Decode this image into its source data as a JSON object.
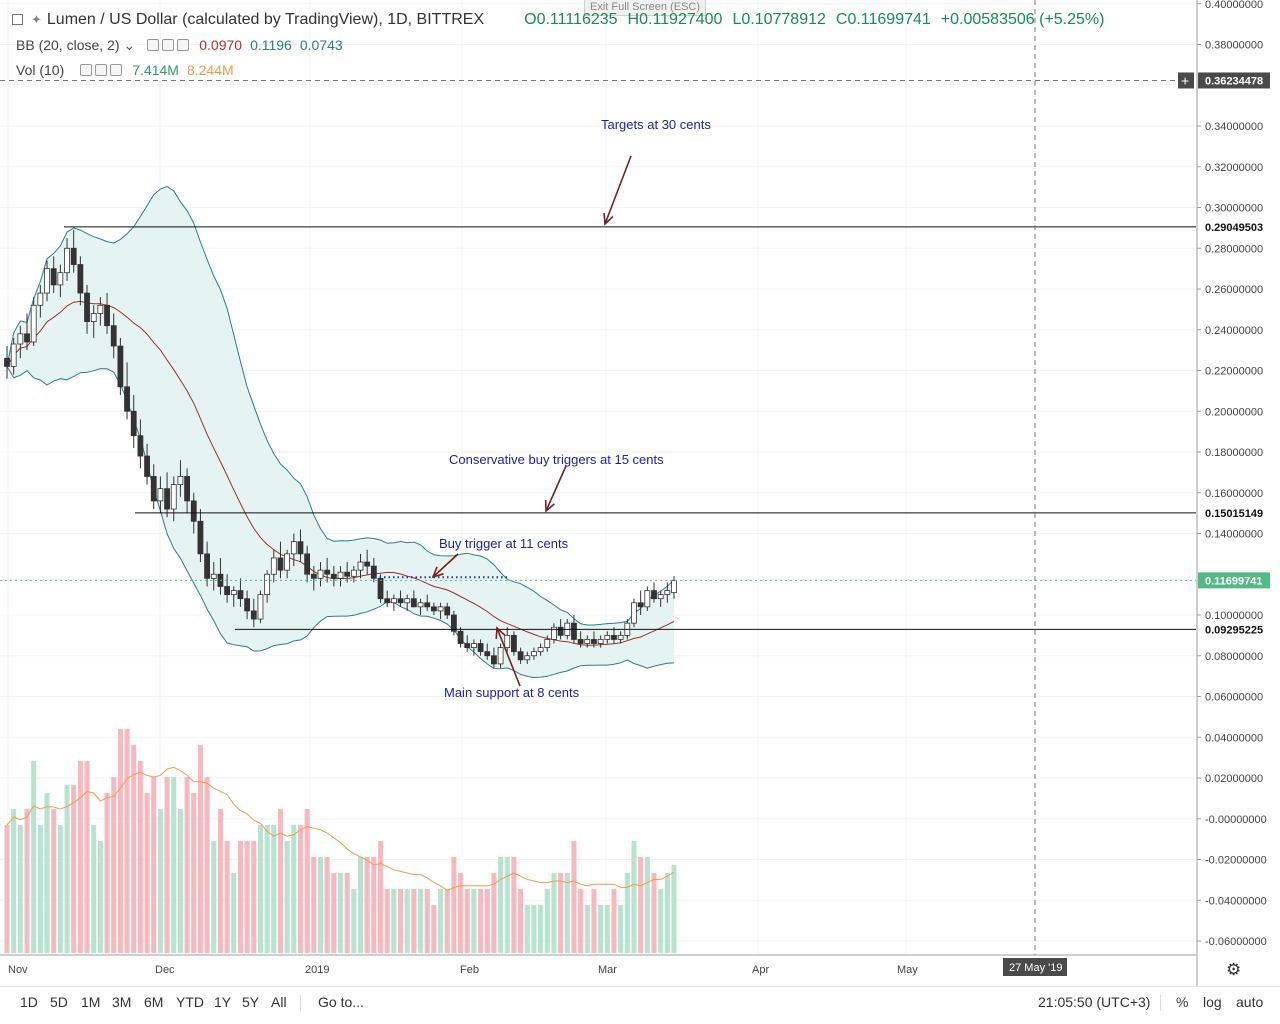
{
  "app": {
    "exit_fullscreen_hint": "Exit Full Screen (ESC)"
  },
  "legend": {
    "symbol_title": "Lumen / US Dollar (calculated by TradingView), 1D, BITTREX",
    "ohlc": {
      "open": "O0.11116235",
      "high": "H0.11927400",
      "low": "L0.10778912",
      "close": "C0.11699741",
      "change": "+0.00583506 (+5.25%)"
    },
    "bb": {
      "label": "BB (20, close, 2)",
      "v1": "0.0970",
      "v2": "0.1196",
      "v3": "0.0743"
    },
    "vol": {
      "label": "Vol (10)",
      "v1": "7.414M",
      "v2": "8.244M"
    }
  },
  "price_axis": {
    "ticks": [
      "0.40000000",
      "0.38000000",
      "0.34000000",
      "0.32000000",
      "0.30000000",
      "0.28000000",
      "0.26000000",
      "0.24000000",
      "0.22000000",
      "0.20000000",
      "0.18000000",
      "0.16000000",
      "0.14000000",
      "0.10000000",
      "0.08000000",
      "0.06000000",
      "0.04000000",
      "0.02000000",
      "-0.00000000",
      "-0.02000000",
      "-0.04000000",
      "-0.06000000"
    ],
    "labels": {
      "crosshair": "0.36234478",
      "target": "0.29049503",
      "conservative": "0.15015149",
      "last": "0.11699741",
      "support": "0.09295225"
    }
  },
  "time_axis": {
    "ticks": [
      "Nov",
      "Dec",
      "2019",
      "Feb",
      "Mar",
      "Apr",
      "May"
    ],
    "crosshair_date": "27 May '19",
    "timezone_clock": "21:05:50 (UTC+3)"
  },
  "annotations": {
    "targets": "Targets at 30 cents",
    "conservative": "Conservative buy triggers at 15 cents",
    "buy_trigger": "Buy trigger at 11 cents",
    "main_support": "Main support at 8 cents"
  },
  "bottom_bar": {
    "timeframes": [
      "1D",
      "5D",
      "1M",
      "3M",
      "6M",
      "YTD",
      "1Y",
      "5Y",
      "All"
    ],
    "goto": "Go to...",
    "percent": "%",
    "log": "log",
    "auto": "auto"
  },
  "colors": {
    "up": "#53b987",
    "down": "#eb4d5c",
    "bb_line": "#2e7d8a",
    "bb_fill": "#e8f4f4",
    "basis": "#8b2a2a",
    "vol_ma": "#f39a48",
    "annotation": "#1e22aa",
    "arrow": "#7a2020"
  },
  "chart_data": {
    "type": "candlestick",
    "symbol": "XLM/USD",
    "exchange": "BITTREX",
    "interval": "1D",
    "x_range": [
      "2018-11-01",
      "2019-03-19"
    ],
    "ylim": [
      -0.066,
      0.4
    ],
    "candles_ohlc": [
      [
        0.226,
        0.232,
        0.216,
        0.222
      ],
      [
        0.222,
        0.236,
        0.218,
        0.233
      ],
      [
        0.233,
        0.242,
        0.226,
        0.238
      ],
      [
        0.238,
        0.248,
        0.23,
        0.234
      ],
      [
        0.234,
        0.256,
        0.232,
        0.252
      ],
      [
        0.252,
        0.262,
        0.246,
        0.258
      ],
      [
        0.258,
        0.274,
        0.254,
        0.27
      ],
      [
        0.27,
        0.276,
        0.258,
        0.262
      ],
      [
        0.262,
        0.272,
        0.256,
        0.268
      ],
      [
        0.268,
        0.285,
        0.264,
        0.28
      ],
      [
        0.28,
        0.289,
        0.268,
        0.272
      ],
      [
        0.272,
        0.276,
        0.252,
        0.258
      ],
      [
        0.258,
        0.262,
        0.238,
        0.244
      ],
      [
        0.244,
        0.252,
        0.236,
        0.248
      ],
      [
        0.248,
        0.256,
        0.242,
        0.252
      ],
      [
        0.252,
        0.258,
        0.238,
        0.242
      ],
      [
        0.242,
        0.248,
        0.226,
        0.232
      ],
      [
        0.232,
        0.236,
        0.208,
        0.212
      ],
      [
        0.212,
        0.224,
        0.196,
        0.2
      ],
      [
        0.2,
        0.208,
        0.182,
        0.188
      ],
      [
        0.188,
        0.196,
        0.172,
        0.178
      ],
      [
        0.178,
        0.184,
        0.164,
        0.168
      ],
      [
        0.168,
        0.174,
        0.152,
        0.156
      ],
      [
        0.156,
        0.168,
        0.15,
        0.162
      ],
      [
        0.162,
        0.17,
        0.148,
        0.152
      ],
      [
        0.152,
        0.168,
        0.146,
        0.164
      ],
      [
        0.164,
        0.176,
        0.158,
        0.168
      ],
      [
        0.168,
        0.172,
        0.15,
        0.156
      ],
      [
        0.156,
        0.16,
        0.14,
        0.146
      ],
      [
        0.146,
        0.152,
        0.126,
        0.13
      ],
      [
        0.13,
        0.136,
        0.114,
        0.118
      ],
      [
        0.118,
        0.126,
        0.112,
        0.12
      ],
      [
        0.12,
        0.128,
        0.11,
        0.114
      ],
      [
        0.114,
        0.12,
        0.106,
        0.11
      ],
      [
        0.11,
        0.114,
        0.104,
        0.112
      ],
      [
        0.112,
        0.118,
        0.104,
        0.108
      ],
      [
        0.108,
        0.112,
        0.098,
        0.102
      ],
      [
        0.102,
        0.108,
        0.094,
        0.098
      ],
      [
        0.098,
        0.112,
        0.096,
        0.11
      ],
      [
        0.11,
        0.122,
        0.106,
        0.12
      ],
      [
        0.12,
        0.132,
        0.116,
        0.128
      ],
      [
        0.128,
        0.136,
        0.118,
        0.122
      ],
      [
        0.122,
        0.132,
        0.118,
        0.13
      ],
      [
        0.13,
        0.14,
        0.124,
        0.136
      ],
      [
        0.136,
        0.142,
        0.126,
        0.13
      ],
      [
        0.13,
        0.134,
        0.116,
        0.12
      ],
      [
        0.12,
        0.124,
        0.112,
        0.118
      ],
      [
        0.118,
        0.126,
        0.114,
        0.122
      ],
      [
        0.122,
        0.128,
        0.116,
        0.12
      ],
      [
        0.12,
        0.124,
        0.114,
        0.118
      ],
      [
        0.118,
        0.124,
        0.114,
        0.121
      ],
      [
        0.121,
        0.126,
        0.116,
        0.119
      ],
      [
        0.119,
        0.124,
        0.116,
        0.122
      ],
      [
        0.122,
        0.13,
        0.118,
        0.126
      ],
      [
        0.126,
        0.132,
        0.12,
        0.124
      ],
      [
        0.124,
        0.128,
        0.116,
        0.118
      ],
      [
        0.118,
        0.12,
        0.106,
        0.108
      ],
      [
        0.108,
        0.112,
        0.104,
        0.106
      ],
      [
        0.106,
        0.11,
        0.102,
        0.108
      ],
      [
        0.108,
        0.112,
        0.104,
        0.106
      ],
      [
        0.106,
        0.11,
        0.102,
        0.108
      ],
      [
        0.108,
        0.112,
        0.104,
        0.104
      ],
      [
        0.104,
        0.108,
        0.1,
        0.106
      ],
      [
        0.106,
        0.11,
        0.102,
        0.104
      ],
      [
        0.104,
        0.106,
        0.1,
        0.102
      ],
      [
        0.102,
        0.106,
        0.098,
        0.104
      ],
      [
        0.104,
        0.106,
        0.098,
        0.1
      ],
      [
        0.1,
        0.102,
        0.09,
        0.092
      ],
      [
        0.092,
        0.094,
        0.084,
        0.086
      ],
      [
        0.086,
        0.09,
        0.082,
        0.084
      ],
      [
        0.084,
        0.088,
        0.08,
        0.086
      ],
      [
        0.086,
        0.088,
        0.08,
        0.082
      ],
      [
        0.082,
        0.086,
        0.078,
        0.08
      ],
      [
        0.08,
        0.084,
        0.074,
        0.076
      ],
      [
        0.076,
        0.086,
        0.074,
        0.084
      ],
      [
        0.084,
        0.094,
        0.082,
        0.09
      ],
      [
        0.09,
        0.092,
        0.08,
        0.082
      ],
      [
        0.082,
        0.084,
        0.076,
        0.078
      ],
      [
        0.078,
        0.082,
        0.076,
        0.08
      ],
      [
        0.08,
        0.084,
        0.078,
        0.082
      ],
      [
        0.082,
        0.086,
        0.08,
        0.084
      ],
      [
        0.084,
        0.09,
        0.082,
        0.088
      ],
      [
        0.088,
        0.096,
        0.086,
        0.094
      ],
      [
        0.094,
        0.098,
        0.088,
        0.09
      ],
      [
        0.09,
        0.098,
        0.088,
        0.096
      ],
      [
        0.096,
        0.1,
        0.086,
        0.088
      ],
      [
        0.088,
        0.092,
        0.084,
        0.086
      ],
      [
        0.086,
        0.09,
        0.084,
        0.088
      ],
      [
        0.088,
        0.092,
        0.084,
        0.086
      ],
      [
        0.086,
        0.09,
        0.084,
        0.088
      ],
      [
        0.088,
        0.092,
        0.086,
        0.09
      ],
      [
        0.09,
        0.094,
        0.086,
        0.088
      ],
      [
        0.088,
        0.092,
        0.086,
        0.09
      ],
      [
        0.09,
        0.098,
        0.088,
        0.096
      ],
      [
        0.096,
        0.108,
        0.094,
        0.106
      ],
      [
        0.106,
        0.112,
        0.1,
        0.104
      ],
      [
        0.104,
        0.114,
        0.102,
        0.112
      ],
      [
        0.112,
        0.116,
        0.106,
        0.108
      ],
      [
        0.108,
        0.112,
        0.104,
        0.11
      ],
      [
        0.11,
        0.116,
        0.106,
        0.112
      ],
      [
        0.111,
        0.119,
        0.108,
        0.117
      ]
    ],
    "volume_scale": "relative (0 to 1)",
    "volume_ma_period": 10
  }
}
